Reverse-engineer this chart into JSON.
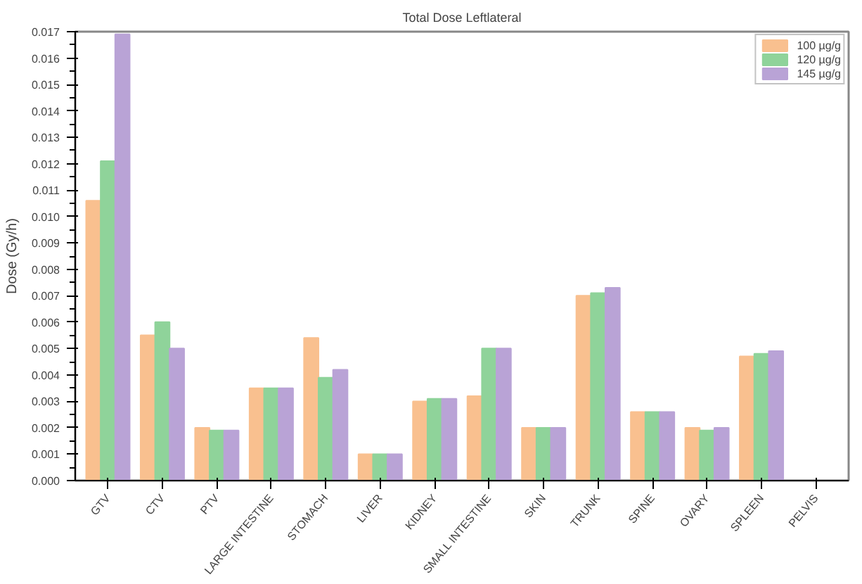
{
  "chart_data": {
    "type": "bar",
    "title": "Total Dose Leftlateral",
    "ylabel": "Dose (Gy/h)",
    "categories": [
      "GTV",
      "CTV",
      "PTV",
      "LARGE INTESTINE",
      "STOMACH",
      "LIVER",
      "KIDNEY",
      "SMALL INTESTINE",
      "SKIN",
      "TRUNK",
      "SPINE",
      "OVARY",
      "SPLEEN",
      "PELVIS"
    ],
    "series": [
      {
        "name": "100 µg/g",
        "color": "#f9c08f",
        "values": [
          0.0106,
          0.0055,
          0.002,
          0.0035,
          0.0054,
          0.001,
          0.003,
          0.0032,
          0.002,
          0.007,
          0.0026,
          0.002,
          0.0047,
          0.0
        ]
      },
      {
        "name": "120 µg/g",
        "color": "#8fd39a",
        "values": [
          0.0121,
          0.006,
          0.0019,
          0.0035,
          0.0039,
          0.001,
          0.0031,
          0.005,
          0.002,
          0.0071,
          0.0026,
          0.0019,
          0.0048,
          0.0
        ]
      },
      {
        "name": "145 µg/g",
        "color": "#b9a3d6",
        "values": [
          0.0169,
          0.005,
          0.0019,
          0.0035,
          0.0042,
          0.001,
          0.0031,
          0.005,
          0.002,
          0.0073,
          0.0026,
          0.002,
          0.0049,
          0.0
        ]
      }
    ],
    "ylim": [
      0,
      0.017
    ],
    "yticks": [
      {
        "value": 0,
        "label": "0.000"
      },
      0.001,
      0.002,
      0.003,
      0.004,
      0.005,
      0.006,
      0.007,
      0.008,
      0.009,
      {
        "value": 0.01,
        "label": "0.010"
      },
      0.011,
      0.012,
      0.013,
      0.014,
      0.015,
      0.016,
      0.017
    ],
    "grid": false,
    "legend": "top right"
  }
}
